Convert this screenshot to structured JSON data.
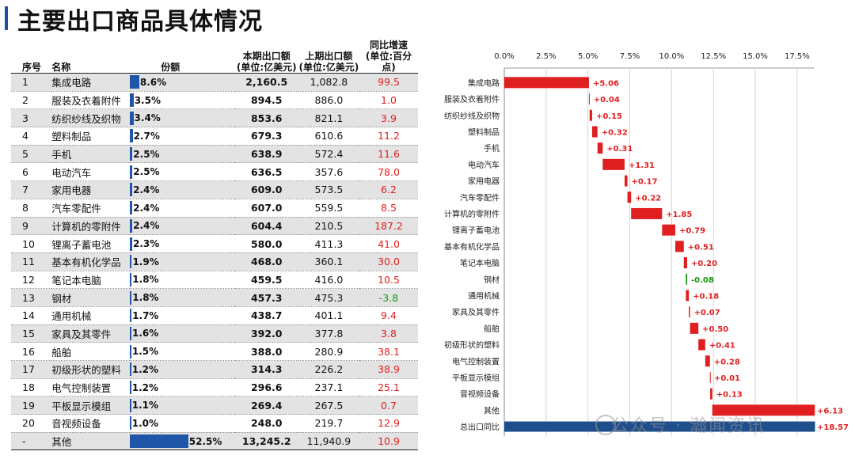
{
  "page": {
    "title": "主要出口商品具体情况"
  },
  "table": {
    "headers": {
      "idx": "序号",
      "name": "名称",
      "share": "份额",
      "current": [
        "本期出口额",
        "(单位:亿美元)"
      ],
      "previous": [
        "上期出口额",
        "(单位:亿美元)"
      ],
      "yoy": [
        "同比增速",
        "(单位:百分点)"
      ]
    },
    "rows": [
      {
        "idx": "1",
        "name": "集成电路",
        "share": "8.6%",
        "share_value": 8.6,
        "current": "2,160.5",
        "previous": "1,082.8",
        "yoy": "99.5"
      },
      {
        "idx": "2",
        "name": "服装及衣着附件",
        "share": "3.5%",
        "share_value": 3.5,
        "current": "894.5",
        "previous": "886.0",
        "yoy": "1.0"
      },
      {
        "idx": "3",
        "name": "纺织纱线及织物",
        "share": "3.4%",
        "share_value": 3.4,
        "current": "853.6",
        "previous": "821.1",
        "yoy": "3.9"
      },
      {
        "idx": "4",
        "name": "塑料制品",
        "share": "2.7%",
        "share_value": 2.7,
        "current": "679.3",
        "previous": "610.6",
        "yoy": "11.2"
      },
      {
        "idx": "5",
        "name": "手机",
        "share": "2.5%",
        "share_value": 2.5,
        "current": "638.9",
        "previous": "572.4",
        "yoy": "11.6"
      },
      {
        "idx": "6",
        "name": "电动汽车",
        "share": "2.5%",
        "share_value": 2.5,
        "current": "636.5",
        "previous": "357.6",
        "yoy": "78.0"
      },
      {
        "idx": "7",
        "name": "家用电器",
        "share": "2.4%",
        "share_value": 2.4,
        "current": "609.0",
        "previous": "573.5",
        "yoy": "6.2"
      },
      {
        "idx": "8",
        "name": "汽车零配件",
        "share": "2.4%",
        "share_value": 2.4,
        "current": "607.0",
        "previous": "559.5",
        "yoy": "8.5"
      },
      {
        "idx": "9",
        "name": "计算机的零附件",
        "share": "2.4%",
        "share_value": 2.4,
        "current": "604.4",
        "previous": "210.5",
        "yoy": "187.2"
      },
      {
        "idx": "10",
        "name": "锂离子蓄电池",
        "share": "2.3%",
        "share_value": 2.3,
        "current": "580.0",
        "previous": "411.3",
        "yoy": "41.0"
      },
      {
        "idx": "11",
        "name": "基本有机化学品",
        "share": "1.9%",
        "share_value": 1.9,
        "current": "468.0",
        "previous": "360.1",
        "yoy": "30.0"
      },
      {
        "idx": "12",
        "name": "笔记本电脑",
        "share": "1.8%",
        "share_value": 1.8,
        "current": "459.5",
        "previous": "416.0",
        "yoy": "10.5"
      },
      {
        "idx": "13",
        "name": "钢材",
        "share": "1.8%",
        "share_value": 1.8,
        "current": "457.3",
        "previous": "475.3",
        "yoy": "-3.8"
      },
      {
        "idx": "14",
        "name": "通用机械",
        "share": "1.7%",
        "share_value": 1.7,
        "current": "438.7",
        "previous": "401.1",
        "yoy": "9.4"
      },
      {
        "idx": "15",
        "name": "家具及其零件",
        "share": "1.6%",
        "share_value": 1.6,
        "current": "392.0",
        "previous": "377.8",
        "yoy": "3.8"
      },
      {
        "idx": "16",
        "name": "船舶",
        "share": "1.5%",
        "share_value": 1.5,
        "current": "388.0",
        "previous": "280.9",
        "yoy": "38.1"
      },
      {
        "idx": "17",
        "name": "初级形状的塑料",
        "share": "1.2%",
        "share_value": 1.2,
        "current": "314.3",
        "previous": "226.2",
        "yoy": "38.9"
      },
      {
        "idx": "18",
        "name": "电气控制装置",
        "share": "1.2%",
        "share_value": 1.2,
        "current": "296.6",
        "previous": "237.1",
        "yoy": "25.1"
      },
      {
        "idx": "19",
        "name": "平板显示模组",
        "share": "1.1%",
        "share_value": 1.1,
        "current": "269.4",
        "previous": "267.5",
        "yoy": "0.7"
      },
      {
        "idx": "20",
        "name": "音视频设备",
        "share": "1.0%",
        "share_value": 1.0,
        "current": "248.0",
        "previous": "219.7",
        "yoy": "12.9"
      },
      {
        "idx": "-",
        "name": "其他",
        "share": "52.5%",
        "share_value": 52.5,
        "current": "13,245.2",
        "previous": "11,940.9",
        "yoy": "10.9"
      }
    ]
  },
  "colors": {
    "share_bar": "#1f56a8",
    "positive": "#e02020",
    "negative": "#119911",
    "total": "#1f4e8c"
  },
  "chart_data": {
    "type": "bar",
    "subtype": "waterfall",
    "title": "",
    "xlim": [
      0,
      18.57
    ],
    "x_ticks": [
      "0.0%",
      "2.5%",
      "5.0%",
      "7.5%",
      "10.0%",
      "12.5%",
      "15.0%",
      "17.5%"
    ],
    "x_tick_values": [
      0,
      2.5,
      5.0,
      7.5,
      10.0,
      12.5,
      15.0,
      17.5
    ],
    "categories": [
      "集成电路",
      "服装及衣着附件",
      "纺织纱线及织物",
      "塑料制品",
      "手机",
      "电动汽车",
      "家用电器",
      "汽车零配件",
      "计算机的零附件",
      "锂离子蓄电池",
      "基本有机化学品",
      "笔记本电脑",
      "钢材",
      "通用机械",
      "家具及其零件",
      "船舶",
      "初级形状的塑料",
      "电气控制装置",
      "平板显示模组",
      "音视频设备",
      "其他",
      "总出口同比"
    ],
    "values": [
      5.06,
      0.04,
      0.15,
      0.32,
      0.31,
      1.31,
      0.17,
      0.22,
      1.85,
      0.79,
      0.51,
      0.2,
      -0.08,
      0.18,
      0.07,
      0.5,
      0.41,
      0.28,
      0.01,
      0.13,
      6.13,
      18.57
    ],
    "labels": [
      "+5.06",
      "+0.04",
      "+0.15",
      "+0.32",
      "+0.31",
      "+1.31",
      "+0.17",
      "+0.22",
      "+1.85",
      "+0.79",
      "+0.51",
      "+0.20",
      "-0.08",
      "+0.18",
      "+0.07",
      "+0.50",
      "+0.41",
      "+0.28",
      "+0.01",
      "+0.13",
      "+6.13",
      "+18.57"
    ],
    "total_category": "总出口同比"
  },
  "watermark": "公众号 · 瀚闻资讯"
}
